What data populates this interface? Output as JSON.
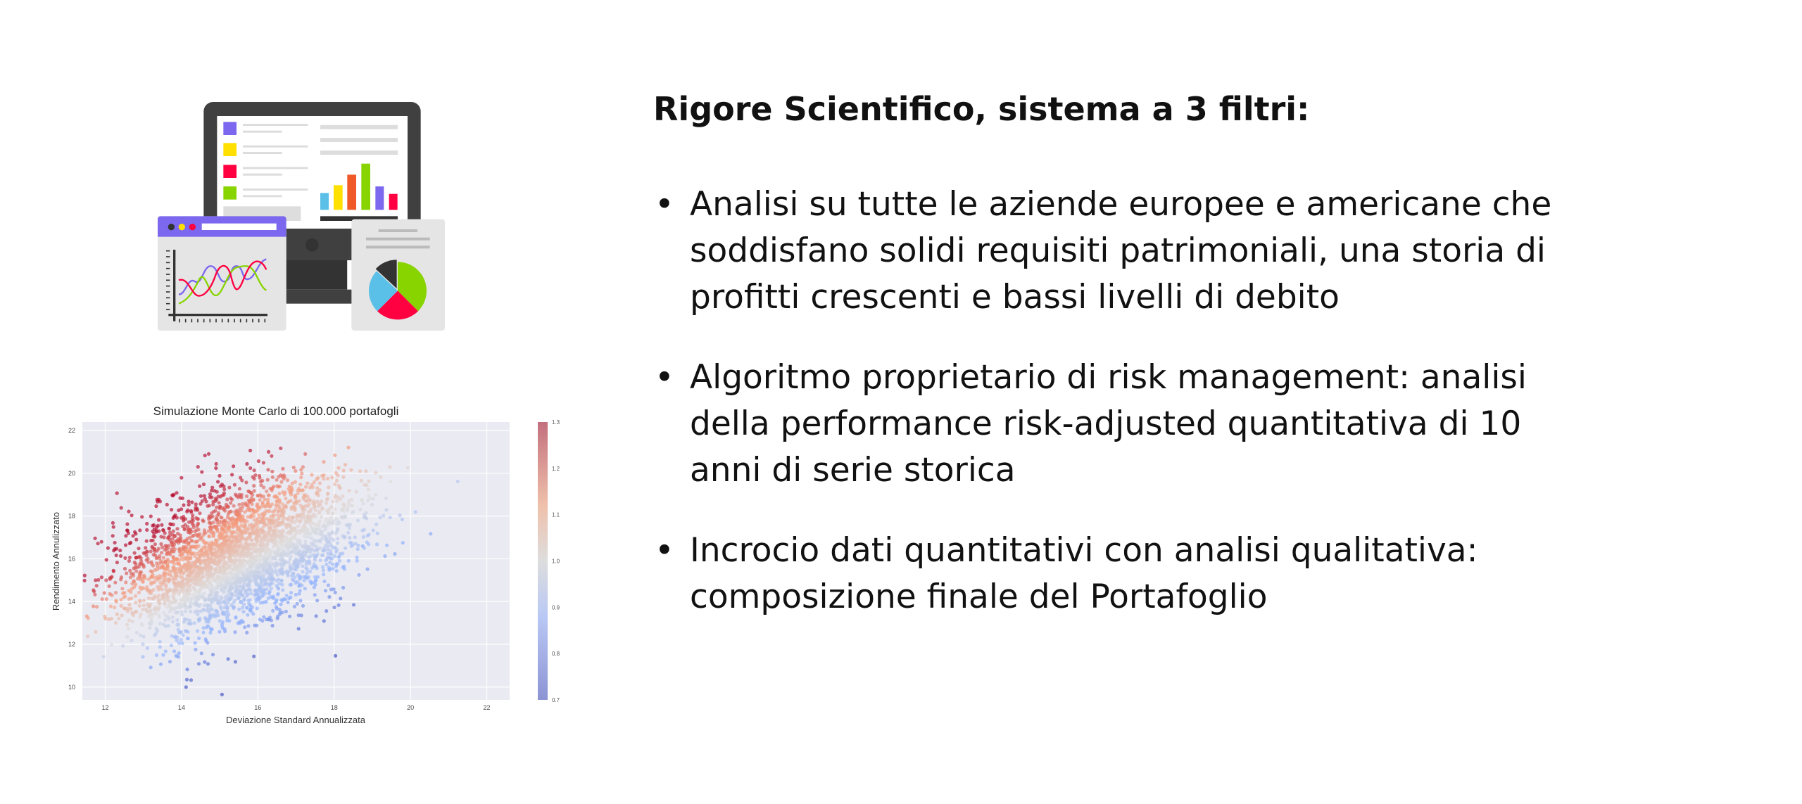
{
  "heading": "Rigore Scientifico, sistema a 3 filtri:",
  "bullets": [
    {
      "line1": "Analisi su tutte le aziende europee e americane che",
      "line2": "soddisfano solidi requisiti patrimoniali, una storia di",
      "line3": "profitti crescenti e bassi livelli di debito"
    },
    {
      "line1": "Algoritmo proprietario di risk management: analisi",
      "line2": "della performance risk-adjusted quantitativa di 10",
      "line3": "anni di serie storica"
    },
    {
      "line1": "Incrocio dati quantitativi con analisi qualitativa:",
      "line2": "composizione finale del Portafoglio"
    }
  ],
  "bullet_symbol": "•",
  "illustration": {
    "icon": "analytics-dashboard-illustration",
    "colors": {
      "purple": "#7B68EE",
      "yellow": "#FFE000",
      "red": "#FF0040",
      "green": "#88D400",
      "blue": "#5BC0E8",
      "orange": "#F05A28",
      "dark": "#404040"
    }
  },
  "chart_data": {
    "type": "scatter",
    "title": "Simulazione Monte Carlo di 100.000 portafogli",
    "xlabel": "Deviazione Standard Annualizzata",
    "ylabel": "Rendimento Annulizzato",
    "xlim": [
      11.4,
      22.6
    ],
    "ylim": [
      9.4,
      22.4
    ],
    "xticks": [
      12,
      14,
      16,
      18,
      20,
      22
    ],
    "yticks": [
      10,
      12,
      14,
      16,
      18,
      20,
      22
    ],
    "grid": true,
    "colormap": "coolwarm",
    "colorbar": {
      "min": 0.7,
      "max": 1.3,
      "ticks": [
        "0.7",
        "0.8",
        "0.9",
        "1.0",
        "1.1",
        "1.2",
        "1.3"
      ]
    }
  }
}
